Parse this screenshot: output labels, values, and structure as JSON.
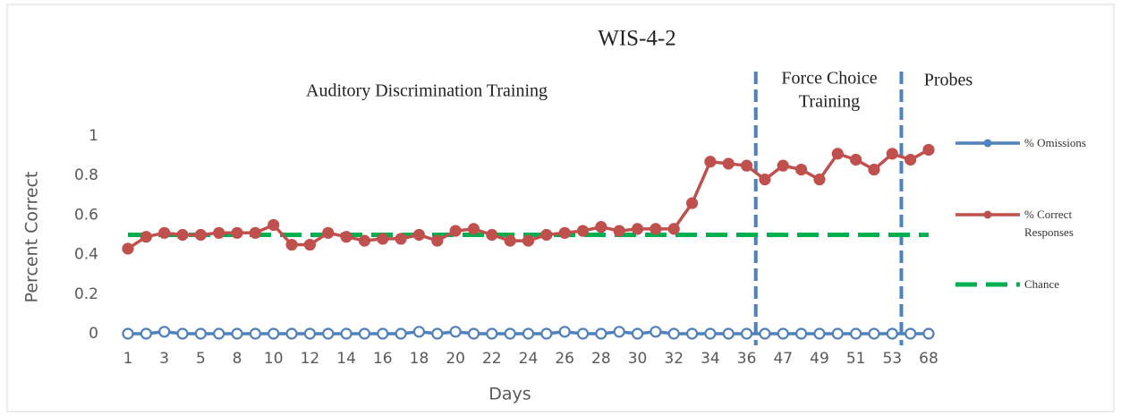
{
  "chart_data": {
    "type": "line",
    "title": "WIS-4-2",
    "x_label": "Days",
    "y_label": "Percent Correct",
    "categories": [
      "1",
      null,
      "3",
      null,
      "5",
      null,
      "8",
      null,
      "10",
      null,
      "12",
      null,
      "14",
      null,
      "16",
      null,
      "18",
      null,
      "20",
      null,
      "22",
      null,
      "24",
      null,
      "26",
      null,
      "28",
      null,
      "30",
      null,
      "32",
      null,
      "34",
      null,
      "36",
      null,
      "47",
      null,
      "49",
      null,
      "51",
      null,
      "53",
      null,
      "68"
    ],
    "ylim": [
      0,
      1
    ],
    "yticks": [
      0,
      0.2,
      0.4,
      0.6,
      0.8,
      1
    ],
    "grid": false,
    "legend": "right",
    "series": [
      {
        "name": "% Omissions",
        "color": "#4f81bd",
        "marker": "open",
        "values": [
          0,
          0,
          0.01,
          0,
          0,
          0,
          0,
          0,
          0,
          0,
          0,
          0,
          0,
          0,
          0,
          0,
          0.01,
          0,
          0.01,
          0,
          0,
          0,
          0,
          0,
          0.01,
          0,
          0,
          0.01,
          0,
          0.01,
          0,
          0,
          0,
          0,
          0,
          0,
          0,
          0,
          0,
          0,
          0,
          0,
          0,
          0,
          0
        ]
      },
      {
        "name": "% Correct Responses",
        "color": "#c0504d",
        "marker": "filled",
        "values": [
          0.43,
          0.49,
          0.51,
          0.5,
          0.5,
          0.51,
          0.51,
          0.51,
          0.55,
          0.45,
          0.45,
          0.51,
          0.49,
          0.47,
          0.48,
          0.48,
          0.5,
          0.47,
          0.52,
          0.53,
          0.5,
          0.47,
          0.47,
          0.5,
          0.51,
          0.52,
          0.54,
          0.52,
          0.53,
          0.53,
          0.53,
          0.66,
          0.87,
          0.86,
          0.85,
          0.78,
          0.85,
          0.83,
          0.78,
          0.91,
          0.88,
          0.83,
          0.91,
          0.88,
          0.93
        ]
      },
      {
        "name": "Chance",
        "color": "#00b050",
        "marker": "none",
        "dashed": true,
        "values": [
          0.5,
          0.5,
          0.5,
          0.5,
          0.5,
          0.5,
          0.5,
          0.5,
          0.5,
          0.5,
          0.5,
          0.5,
          0.5,
          0.5,
          0.5,
          0.5,
          0.5,
          0.5,
          0.5,
          0.5,
          0.5,
          0.5,
          0.5,
          0.5,
          0.5,
          0.5,
          0.5,
          0.5,
          0.5,
          0.5,
          0.5,
          0.5,
          0.5,
          0.5,
          0.5,
          0.5,
          0.5,
          0.5,
          0.5,
          0.5,
          0.5,
          0.5,
          0.5,
          0.5,
          0.5
        ]
      }
    ],
    "annotations": [
      {
        "lines": [
          "Auditory Discrimination Training"
        ]
      },
      {
        "lines": [
          "Force Choice",
          "Training"
        ]
      },
      {
        "lines": [
          "Probes"
        ]
      }
    ]
  }
}
